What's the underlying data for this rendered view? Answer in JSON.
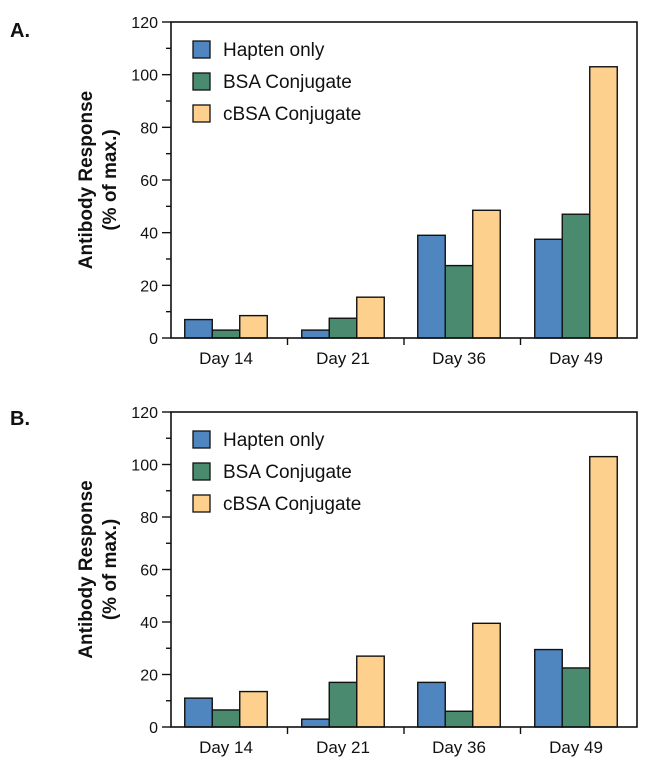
{
  "chart_data": [
    {
      "panel": "A.",
      "type": "bar",
      "categories": [
        "Day 14",
        "Day 21",
        "Day 36",
        "Day 49"
      ],
      "series": [
        {
          "name": "Hapten only",
          "color": "#4f86c0",
          "values": [
            7,
            3,
            39,
            37.5
          ]
        },
        {
          "name": "BSA Conjugate",
          "color": "#4a8a6e",
          "values": [
            3,
            7.5,
            27.5,
            47
          ]
        },
        {
          "name": "cBSA Conjugate",
          "color": "#fdd08e",
          "values": [
            8.5,
            15.5,
            48.5,
            103
          ]
        }
      ],
      "ylabel_line1": "Antibody Response",
      "ylabel_line2": "(% of max.)",
      "ylim": [
        0,
        120
      ],
      "yticks": [
        "0",
        "20",
        "40",
        "60",
        "80",
        "100",
        "120"
      ],
      "legend": "top-left",
      "grid": false
    },
    {
      "panel": "B.",
      "type": "bar",
      "categories": [
        "Day 14",
        "Day 21",
        "Day 36",
        "Day 49"
      ],
      "series": [
        {
          "name": "Hapten only",
          "color": "#4f86c0",
          "values": [
            11,
            3,
            17,
            29.5
          ]
        },
        {
          "name": "BSA Conjugate",
          "color": "#4a8a6e",
          "values": [
            6.5,
            17,
            6,
            22.5
          ]
        },
        {
          "name": "cBSA Conjugate",
          "color": "#fdd08e",
          "values": [
            13.5,
            27,
            39.5,
            103
          ]
        }
      ],
      "ylabel_line1": "Antibody Response",
      "ylabel_line2": "(% of max.)",
      "ylim": [
        0,
        120
      ],
      "yticks": [
        "0",
        "20",
        "40",
        "60",
        "80",
        "100",
        "120"
      ],
      "legend": "top-left",
      "grid": false
    }
  ]
}
